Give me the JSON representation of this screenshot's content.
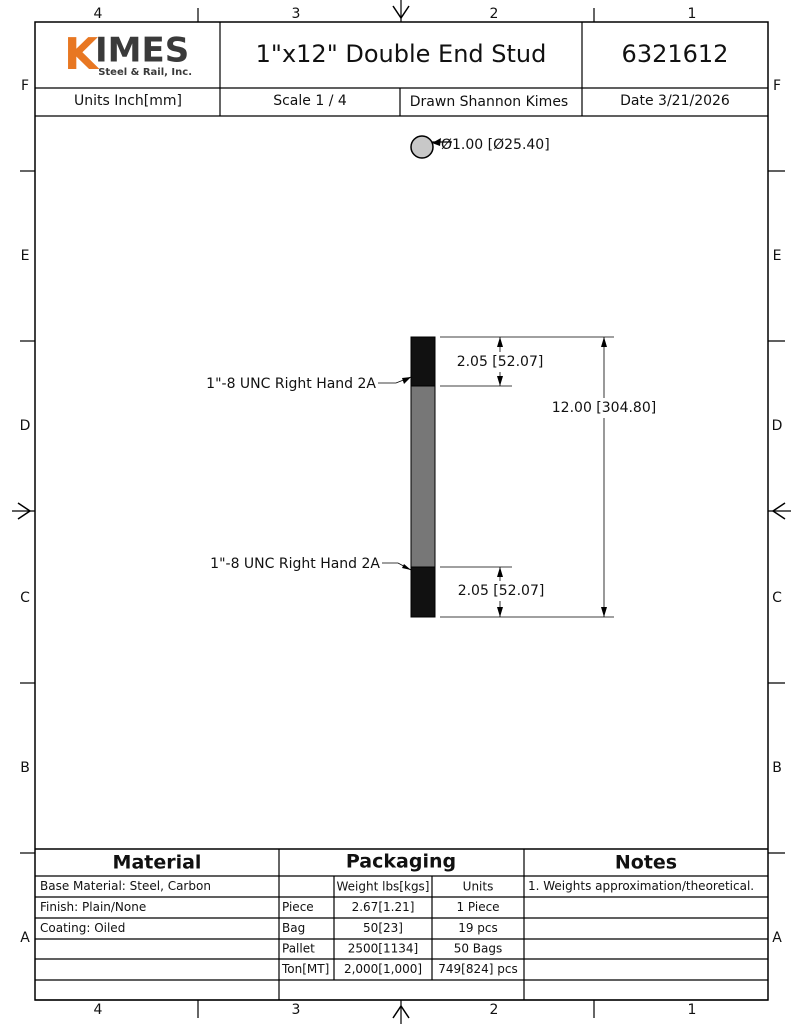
{
  "border": {
    "columns": [
      "4",
      "3",
      "2",
      "1"
    ],
    "rows": [
      "F",
      "E",
      "D",
      "C",
      "B",
      "A"
    ]
  },
  "header": {
    "logo": {
      "initial": "K",
      "rest": "IMES",
      "tagline": "Steel & Rail, Inc."
    },
    "title": "1\"x12\" Double End Stud",
    "part_number": "6321612",
    "units": "Units Inch[mm]",
    "scale": "Scale 1 / 4",
    "drawn": "Drawn Shannon Kimes",
    "date": "Date 3/21/2026"
  },
  "drawing": {
    "diameter": "Ø1.00 [Ø25.40]",
    "thread_top": "1\"-8 UNC Right Hand 2A",
    "thread_bottom": "1\"-8 UNC Right Hand 2A",
    "dim_top": "2.05 [52.07]",
    "dim_overall": "12.00 [304.80]",
    "dim_bottom": "2.05 [52.07]"
  },
  "table": {
    "material": {
      "title": "Material",
      "rows": [
        "Base Material: Steel, Carbon",
        "Finish: Plain/None",
        "Coating: Oiled"
      ]
    },
    "packaging": {
      "title": "Packaging",
      "columns": [
        "Weight lbs[kgs]",
        "Units"
      ],
      "rows": [
        {
          "label": "Piece",
          "weight": "2.67[1.21]",
          "units": "1 Piece"
        },
        {
          "label": "Bag",
          "weight": "50[23]",
          "units": "19 pcs"
        },
        {
          "label": "Pallet",
          "weight": "2500[1134]",
          "units": "50 Bags"
        },
        {
          "label": "Ton[MT]",
          "weight": "2,000[1,000]",
          "units": "749[824] pcs"
        }
      ]
    },
    "notes": {
      "title": "Notes",
      "rows": [
        "1. Weights approximation/theoretical."
      ]
    }
  }
}
